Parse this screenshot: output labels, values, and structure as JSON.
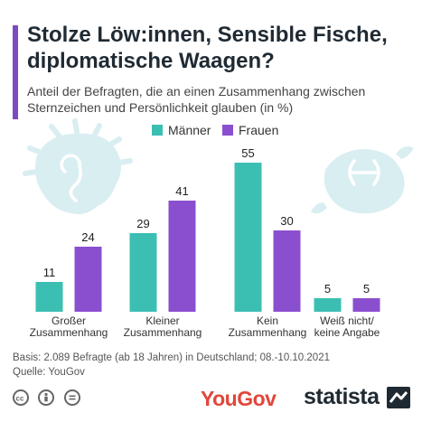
{
  "title": "Stolze Löw:innen, Sensible Fische, diplomatische Waagen?",
  "subtitle": "Anteil der Befragten, die an einen Zusammenhang zwischen Sternzeichen und Persönlichkeit glauben (in %)",
  "colors": {
    "accent": "#7b4bc4",
    "men": "#3bbfb2",
    "women": "#8a4fcf",
    "illustration": "#d9eef1"
  },
  "chart_data": {
    "type": "bar",
    "title": "Stolze Löw:innen, Sensible Fische, diplomatische Waagen?",
    "subtitle": "Anteil der Befragten, die an einen Zusammenhang zwischen Sternzeichen und Persönlichkeit glauben (in %)",
    "categories": [
      "Großer Zusammenhang",
      "Kleiner Zusammenhang",
      "Kein Zusammenhang",
      "Weiß nicht/ keine Angabe"
    ],
    "category_lines": [
      [
        "Großer",
        "Zusammenhang"
      ],
      [
        "Kleiner",
        "Zusammenhang"
      ],
      [
        "Kein",
        "Zusammenhang"
      ],
      [
        "Weiß nicht/",
        "keine Angabe"
      ]
    ],
    "series": [
      {
        "name": "Männer",
        "values": [
          11,
          29,
          55,
          5
        ]
      },
      {
        "name": "Frauen",
        "values": [
          24,
          41,
          30,
          5
        ]
      }
    ],
    "ylim": [
      0,
      55
    ],
    "xlabel": "",
    "ylabel": "",
    "grid": false,
    "legend_position": "top"
  },
  "footer": {
    "basis": "Basis: 2.089 Befragte (ab 18 Jahren) in Deutschland; 08.-10.10.2021",
    "source": "Quelle: YouGov"
  },
  "icons": [
    "creative-commons-icon",
    "attribution-icon",
    "no-derivatives-icon",
    "leo-zodiac-icon",
    "pisces-zodiac-icon",
    "statista-mark-icon"
  ],
  "logos": {
    "yougov": "YouGov",
    "statista": "statista"
  }
}
